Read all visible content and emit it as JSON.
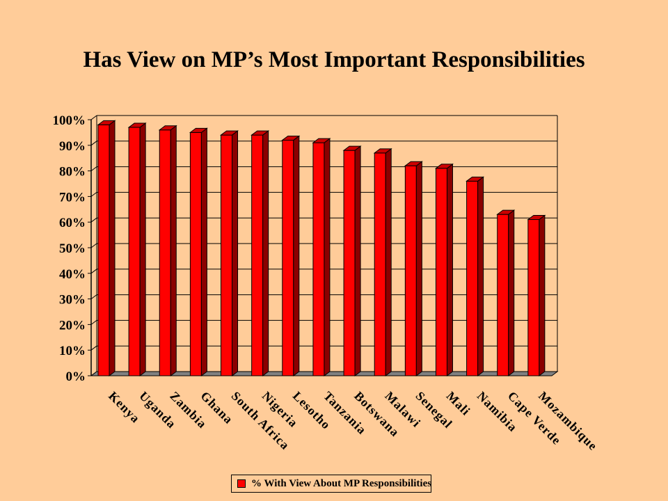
{
  "chart_data": {
    "type": "bar",
    "title": "Has View on MP’s Most Important Responsibilities",
    "categories": [
      "Kenya",
      "Uganda",
      "Zambia",
      "Ghana",
      "South Africa",
      "Nigeria",
      "Lesotho",
      "Tanzania",
      "Botswana",
      "Malawi",
      "Senegal",
      "Mali",
      "Namibia",
      "Cape Verde",
      "Mozambique"
    ],
    "series": [
      {
        "name": "% With View About MP Responsibilities",
        "values": [
          98,
          97,
          96,
          95,
          94,
          94,
          92,
          91,
          88,
          87,
          82,
          81,
          76,
          63,
          61
        ]
      }
    ],
    "y_tick_labels": [
      "0%",
      "10%",
      "20%",
      "30%",
      "40%",
      "50%",
      "60%",
      "70%",
      "80%",
      "90%",
      "100%"
    ],
    "ylim": [
      0,
      100
    ],
    "xlabel": "",
    "ylabel": "",
    "grid": true,
    "legend_position": "bottom",
    "colors": {
      "bar": "#FF0000",
      "bar_side": "#8B0000",
      "bar_top": "#CC0000",
      "background": "#FFCC99",
      "floor": "#808080"
    }
  }
}
